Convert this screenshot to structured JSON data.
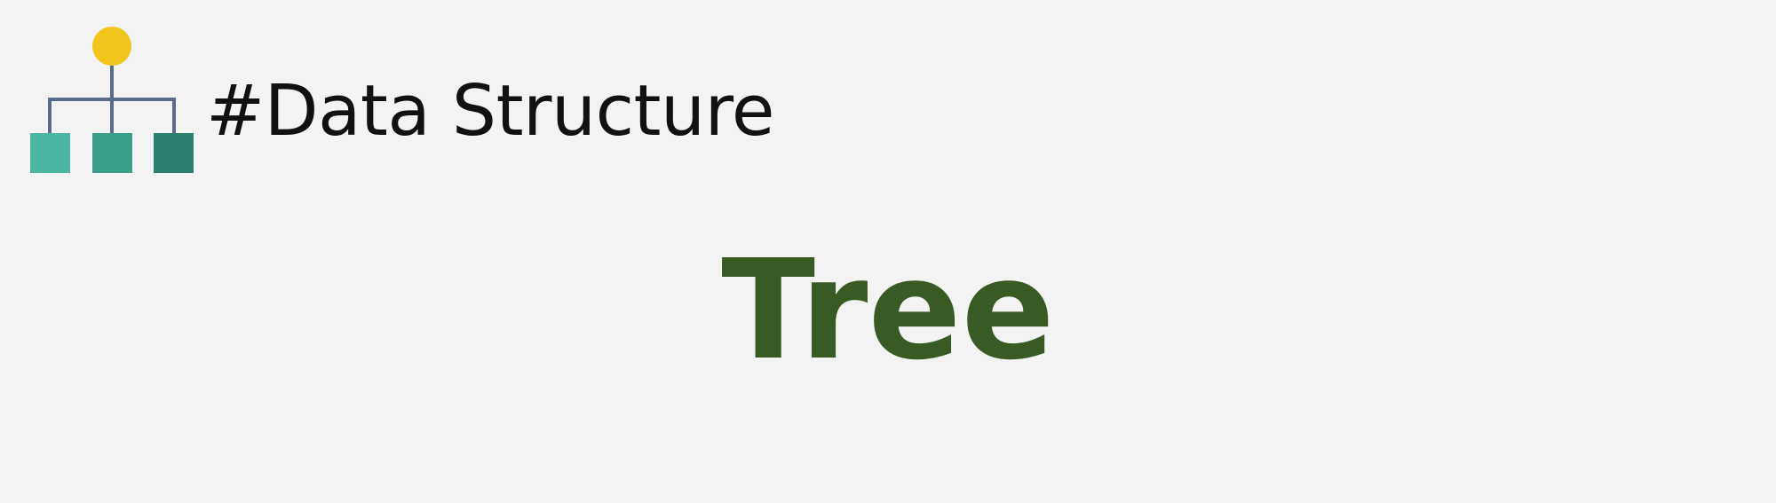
{
  "header": {
    "title": "#Data Structure",
    "logo_icon": "tree-hierarchy-icon"
  },
  "main": {
    "title": "Tree"
  },
  "colors": {
    "background": "#f3f3f3",
    "header_text": "#111111",
    "main_title": "#3a5a23",
    "root_node": "#f2c51e",
    "connector": "#5a6a8a",
    "child_1": "#4ab5a1",
    "child_2": "#3b9e8a",
    "child_3": "#2d8070"
  }
}
